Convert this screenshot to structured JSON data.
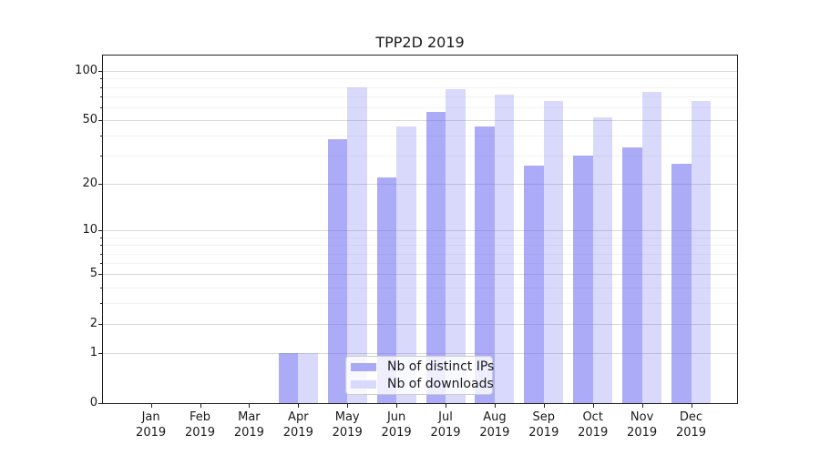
{
  "window": {
    "background": "#ffffff"
  },
  "chart_data": {
    "type": "bar",
    "title": "TPP2D 2019",
    "categories": [
      "Jan 2019",
      "Feb 2019",
      "Mar 2019",
      "Apr 2019",
      "May 2019",
      "Jun 2019",
      "Jul 2019",
      "Aug 2019",
      "Sep 2019",
      "Oct 2019",
      "Nov 2019",
      "Dec 2019"
    ],
    "series": [
      {
        "name": "Nb of distinct IPs",
        "values": [
          0,
          0,
          0,
          1,
          38,
          22,
          56,
          46,
          26,
          30,
          34,
          27
        ],
        "color": "rgba(102,102,242,0.55)",
        "legend_color": "#a9a9f6"
      },
      {
        "name": "Nb of downloads",
        "values": [
          0,
          0,
          0,
          1,
          80,
          46,
          77,
          72,
          66,
          52,
          75,
          66
        ],
        "color": "rgba(102,102,242,0.25)",
        "legend_color": "#d9d9fb"
      }
    ],
    "yscale": "log1p",
    "ylim": [
      0,
      127
    ],
    "yticks": [
      0,
      1,
      2,
      5,
      10,
      20,
      50,
      100
    ],
    "ytick_labels": [
      "0",
      "1",
      "2",
      "5",
      "10",
      "20",
      "50",
      "100"
    ],
    "minor_yticks": [
      3,
      4,
      6,
      7,
      8,
      9,
      30,
      40,
      60,
      70,
      80,
      90
    ],
    "grid": true,
    "legend_position": "lower center",
    "colors": {
      "major_grid": "#d9d9d9",
      "minor_grid": "#f2f2f2",
      "spine": "#1f1f1f",
      "text": "#1a1a1a"
    }
  }
}
